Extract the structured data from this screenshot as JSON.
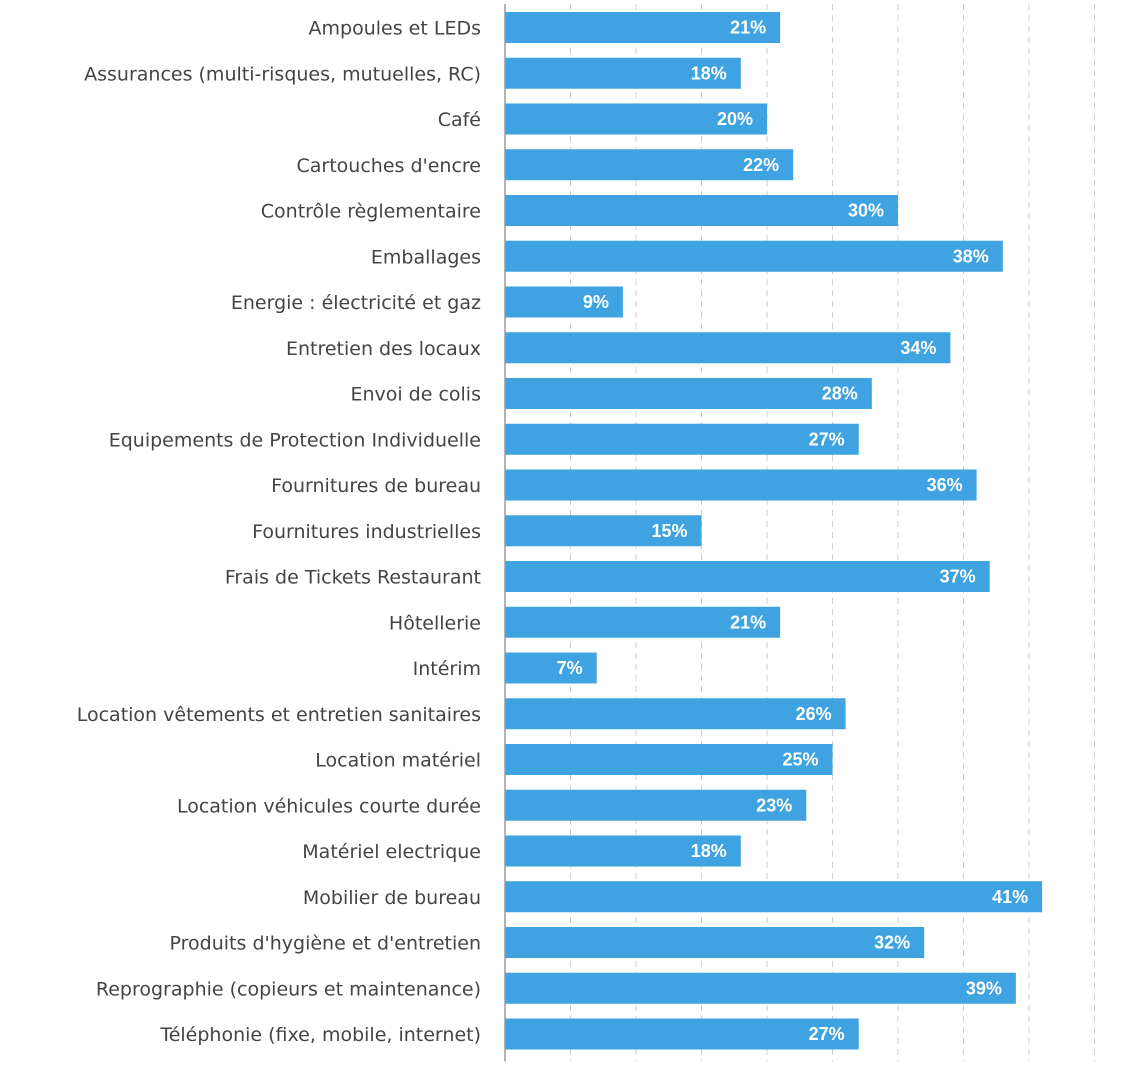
{
  "chart_data": {
    "type": "bar",
    "orientation": "horizontal",
    "title": "",
    "xlabel": "",
    "ylabel": "",
    "bar_color": "#3ea3e0",
    "value_suffix": "%",
    "xlim": [
      0,
      45
    ],
    "grid": true,
    "categories": [
      "Ampoules et LEDs",
      "Assurances (multi-risques, mutuelles, RC)",
      "Café",
      "Cartouches d'encre",
      "Contrôle règlementaire",
      "Emballages",
      "Energie : électricité et gaz",
      "Entretien des locaux",
      "Envoi de colis",
      "Equipements de Protection Individuelle",
      "Fournitures de bureau",
      "Fournitures industrielles",
      "Frais de Tickets Restaurant",
      "Hôtellerie",
      "Intérim",
      "Location vêtements et entretien sanitaires",
      "Location matériel",
      "Location véhicules courte durée",
      "Matériel electrique",
      "Mobilier de bureau",
      "Produits d'hygiène et d'entretien",
      "Reprographie (copieurs et maintenance)",
      "Téléphonie (fixe, mobile, internet)"
    ],
    "values": [
      21,
      18,
      20,
      22,
      30,
      38,
      9,
      34,
      28,
      27,
      36,
      15,
      37,
      21,
      7,
      26,
      25,
      23,
      18,
      41,
      32,
      39,
      27
    ],
    "labels": [
      "21%",
      "18%",
      "20%",
      "22%",
      "30%",
      "38%",
      "9%",
      "34%",
      "28%",
      "27%",
      "36%",
      "15%",
      "37%",
      "21%",
      "7%",
      "26%",
      "25%",
      "23%",
      "18%",
      "41%",
      "32%",
      "39%",
      "27%"
    ]
  }
}
